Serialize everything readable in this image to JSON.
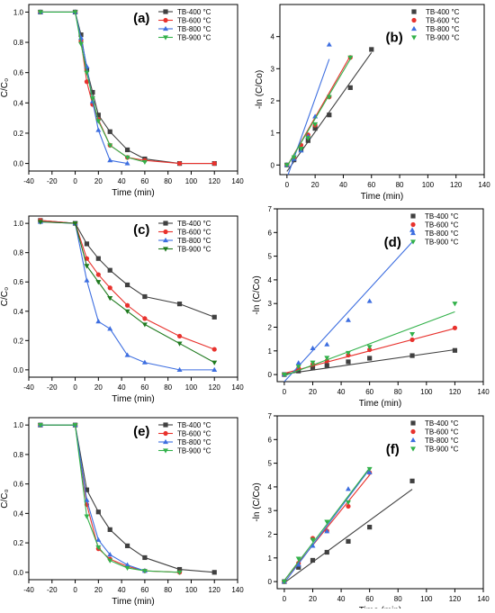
{
  "chart_data": [
    {
      "id": "a",
      "type": "line",
      "panel_label": "(a)",
      "xlabel": "Time (min)",
      "ylabel": "C/C₀",
      "xlim": [
        -40,
        140
      ],
      "ylim": [
        -0.05,
        1.05
      ],
      "xticks": [
        -40,
        -20,
        0,
        20,
        40,
        60,
        80,
        100,
        120,
        140
      ],
      "yticks": [
        0.0,
        0.2,
        0.4,
        0.6,
        0.8,
        1.0
      ],
      "legend": "top-right",
      "series": [
        {
          "name": "TB-400 °C",
          "color": "#404040",
          "marker": "square",
          "x": [
            -30,
            0,
            5,
            10,
            15,
            20,
            30,
            45,
            60,
            90,
            120
          ],
          "y": [
            1.0,
            1.0,
            0.85,
            0.62,
            0.47,
            0.32,
            0.21,
            0.09,
            0.03,
            0.0,
            0.0
          ]
        },
        {
          "name": "TB-600 °C",
          "color": "#e8322d",
          "marker": "circle",
          "x": [
            -30,
            0,
            5,
            10,
            15,
            20,
            30,
            45,
            60,
            90,
            120
          ],
          "y": [
            1.0,
            1.0,
            0.81,
            0.54,
            0.39,
            0.29,
            0.12,
            0.04,
            0.02,
            0.0,
            0.0
          ]
        },
        {
          "name": "TB-800 °C",
          "color": "#3d6ee0",
          "marker": "triangle-up",
          "x": [
            -30,
            0,
            5,
            10,
            15,
            20,
            30,
            45
          ],
          "y": [
            1.0,
            1.0,
            0.83,
            0.64,
            0.41,
            0.22,
            0.02,
            0.0
          ]
        },
        {
          "name": "TB-900 °C",
          "color": "#32b14a",
          "marker": "triangle-down",
          "x": [
            -30,
            0,
            5,
            10,
            15,
            20,
            30,
            45,
            60
          ],
          "y": [
            1.0,
            1.0,
            0.79,
            0.6,
            0.43,
            0.28,
            0.12,
            0.04,
            0.01
          ]
        }
      ]
    },
    {
      "id": "b",
      "type": "scatter",
      "panel_label": "(b)",
      "xlabel": "Time (min)",
      "ylabel": "-ln (C/Co)",
      "xlim": [
        -5,
        140
      ],
      "ylim": [
        -0.3,
        5
      ],
      "xticks": [
        0,
        20,
        40,
        60,
        80,
        100,
        120,
        140
      ],
      "yticks": [
        0,
        1,
        2,
        3,
        4
      ],
      "legend": "top-right",
      "series": [
        {
          "name": "TB-400 °C",
          "color": "#404040",
          "marker": "square",
          "x": [
            0,
            5,
            10,
            15,
            20,
            30,
            45,
            60
          ],
          "y": [
            0,
            0.16,
            0.48,
            0.76,
            1.14,
            1.56,
            2.41,
            3.6
          ],
          "fit": [
            [
              0,
              -0.2
            ],
            [
              60,
              3.5
            ]
          ]
        },
        {
          "name": "TB-600 °C",
          "color": "#e8322d",
          "marker": "circle",
          "x": [
            0,
            5,
            10,
            15,
            20,
            30,
            45
          ],
          "y": [
            0,
            0.21,
            0.62,
            0.94,
            1.24,
            2.12,
            3.35
          ],
          "fit": [
            [
              0,
              -0.05
            ],
            [
              45,
              3.4
            ]
          ]
        },
        {
          "name": "TB-800 °C",
          "color": "#3d6ee0",
          "marker": "triangle-up",
          "x": [
            0,
            5,
            10,
            15,
            20,
            30
          ],
          "y": [
            0,
            0.19,
            0.45,
            0.89,
            1.51,
            3.75
          ],
          "fit": [
            [
              0,
              -0.4
            ],
            [
              30,
              3.3
            ]
          ]
        },
        {
          "name": "TB-900 °C",
          "color": "#32b14a",
          "marker": "triangle-down",
          "x": [
            0,
            5,
            10,
            15,
            20,
            30,
            45
          ],
          "y": [
            0,
            0.24,
            0.51,
            0.84,
            1.27,
            2.12,
            3.35
          ],
          "fit": [
            [
              0,
              -0.05
            ],
            [
              45,
              3.3
            ]
          ]
        }
      ]
    },
    {
      "id": "c",
      "type": "line",
      "panel_label": "(c)",
      "xlabel": "Time (min)",
      "ylabel": "C/C₀",
      "xlim": [
        -40,
        140
      ],
      "ylim": [
        -0.05,
        1.05
      ],
      "xticks": [
        -40,
        -20,
        0,
        20,
        40,
        60,
        80,
        100,
        120,
        140
      ],
      "yticks": [
        0.0,
        0.2,
        0.4,
        0.6,
        0.8,
        1.0
      ],
      "legend": "top-right",
      "series": [
        {
          "name": "TB-400 °C",
          "color": "#404040",
          "marker": "square",
          "x": [
            -30,
            0,
            10,
            20,
            30,
            45,
            60,
            90,
            120
          ],
          "y": [
            1.02,
            1.0,
            0.86,
            0.76,
            0.68,
            0.58,
            0.5,
            0.45,
            0.36
          ]
        },
        {
          "name": "TB-600 °C",
          "color": "#e8322d",
          "marker": "circle",
          "x": [
            -30,
            0,
            10,
            20,
            30,
            45,
            60,
            90,
            120
          ],
          "y": [
            1.02,
            1.0,
            0.76,
            0.65,
            0.56,
            0.44,
            0.35,
            0.23,
            0.14
          ]
        },
        {
          "name": "TB-800 °C",
          "color": "#3d6ee0",
          "marker": "triangle-up",
          "x": [
            -30,
            0,
            10,
            20,
            30,
            45,
            60,
            90,
            120
          ],
          "y": [
            1.01,
            1.0,
            0.61,
            0.33,
            0.28,
            0.1,
            0.05,
            0.0,
            0.0
          ]
        },
        {
          "name": "TB-900 °C",
          "color": "#1f7a1f",
          "marker": "triangle-down",
          "x": [
            -30,
            0,
            10,
            20,
            30,
            45,
            60,
            90,
            120
          ],
          "y": [
            1.01,
            1.0,
            0.71,
            0.6,
            0.49,
            0.4,
            0.31,
            0.18,
            0.05
          ]
        }
      ]
    },
    {
      "id": "d",
      "type": "scatter",
      "panel_label": "(d)",
      "xlabel": "Time (min)",
      "ylabel": "-ln (C/Co)",
      "xlim": [
        -5,
        140
      ],
      "ylim": [
        -0.3,
        7
      ],
      "xticks": [
        0,
        20,
        40,
        60,
        80,
        100,
        120,
        140
      ],
      "yticks": [
        0,
        1,
        2,
        3,
        4,
        5,
        6,
        7
      ],
      "legend": "top-right",
      "series": [
        {
          "name": "TB-400 °C",
          "color": "#404040",
          "marker": "square",
          "x": [
            0,
            10,
            20,
            30,
            45,
            60,
            90,
            120
          ],
          "y": [
            0,
            0.15,
            0.28,
            0.39,
            0.54,
            0.69,
            0.8,
            1.02
          ],
          "fit": [
            [
              0,
              0.02
            ],
            [
              120,
              1.05
            ]
          ]
        },
        {
          "name": "TB-600 °C",
          "color": "#e8322d",
          "marker": "circle",
          "x": [
            0,
            10,
            20,
            30,
            45,
            60,
            90,
            120
          ],
          "y": [
            0,
            0.27,
            0.43,
            0.58,
            0.82,
            1.05,
            1.47,
            1.97
          ],
          "fit": [
            [
              0,
              0.05
            ],
            [
              120,
              1.95
            ]
          ]
        },
        {
          "name": "TB-800 °C",
          "color": "#3d6ee0",
          "marker": "triangle-up",
          "x": [
            0,
            10,
            20,
            30,
            45,
            60,
            90
          ],
          "y": [
            0,
            0.49,
            1.11,
            1.27,
            2.3,
            3.1,
            6.1
          ],
          "fit": [
            [
              0,
              -0.3
            ],
            [
              90,
              5.6
            ]
          ]
        },
        {
          "name": "TB-900 °C",
          "color": "#32b14a",
          "marker": "triangle-down",
          "x": [
            0,
            10,
            20,
            30,
            45,
            60,
            90,
            120
          ],
          "y": [
            0,
            0.34,
            0.51,
            0.71,
            0.92,
            1.17,
            1.71,
            3.0
          ],
          "fit": [
            [
              0,
              -0.05
            ],
            [
              120,
              2.65
            ]
          ]
        }
      ]
    },
    {
      "id": "e",
      "type": "line",
      "panel_label": "(e)",
      "xlabel": "Time (min)",
      "ylabel": "C/C₀",
      "xlim": [
        -40,
        140
      ],
      "ylim": [
        -0.05,
        1.05
      ],
      "xticks": [
        -40,
        -20,
        0,
        20,
        40,
        60,
        80,
        100,
        120,
        140
      ],
      "yticks": [
        0.0,
        0.2,
        0.4,
        0.6,
        0.8,
        1.0
      ],
      "legend": "top-right",
      "series": [
        {
          "name": "TB-400 °C",
          "color": "#404040",
          "marker": "square",
          "x": [
            -30,
            0,
            10,
            20,
            30,
            45,
            60,
            90,
            120
          ],
          "y": [
            1.0,
            1.0,
            0.56,
            0.41,
            0.29,
            0.18,
            0.1,
            0.02,
            0.0
          ]
        },
        {
          "name": "TB-600 °C",
          "color": "#e8322d",
          "marker": "circle",
          "x": [
            -30,
            0,
            10,
            20,
            30,
            45,
            60,
            90
          ],
          "y": [
            1.0,
            1.0,
            0.46,
            0.16,
            0.09,
            0.04,
            0.01,
            0.0
          ]
        },
        {
          "name": "TB-800 °C",
          "color": "#3d6ee0",
          "marker": "triangle-up",
          "x": [
            -30,
            0,
            10,
            20,
            30,
            45,
            60
          ],
          "y": [
            1.0,
            1.0,
            0.49,
            0.22,
            0.12,
            0.05,
            0.01
          ]
        },
        {
          "name": "TB-900 °C",
          "color": "#32b14a",
          "marker": "triangle-down",
          "x": [
            -30,
            0,
            10,
            20,
            30,
            45,
            60,
            90
          ],
          "y": [
            1.0,
            1.0,
            0.38,
            0.17,
            0.08,
            0.03,
            0.01,
            0.0
          ]
        }
      ]
    },
    {
      "id": "f",
      "type": "scatter",
      "panel_label": "(f)",
      "xlabel": "Time (min)",
      "ylabel": "-ln (C/Co)",
      "xlim": [
        -5,
        140
      ],
      "ylim": [
        -0.3,
        7
      ],
      "xticks": [
        0,
        20,
        40,
        60,
        80,
        100,
        120,
        140
      ],
      "yticks": [
        0,
        1,
        2,
        3,
        4,
        5,
        6,
        7
      ],
      "legend": "top-right",
      "series": [
        {
          "name": "TB-400 °C",
          "color": "#404040",
          "marker": "square",
          "x": [
            0,
            10,
            20,
            30,
            45,
            60,
            90
          ],
          "y": [
            0,
            0.6,
            0.9,
            1.24,
            1.7,
            2.3,
            4.25
          ],
          "fit": [
            [
              0,
              -0.05
            ],
            [
              90,
              3.9
            ]
          ]
        },
        {
          "name": "TB-600 °C",
          "color": "#e8322d",
          "marker": "circle",
          "x": [
            0,
            10,
            20,
            30,
            45,
            60
          ],
          "y": [
            0,
            0.78,
            1.83,
            2.14,
            3.18,
            4.6
          ],
          "fit": [
            [
              0,
              0.05
            ],
            [
              60,
              4.5
            ]
          ]
        },
        {
          "name": "TB-800 °C",
          "color": "#3d6ee0",
          "marker": "triangle-up",
          "x": [
            0,
            10,
            20,
            30,
            45,
            60
          ],
          "y": [
            0,
            0.71,
            1.51,
            2.12,
            3.91,
            4.61
          ],
          "fit": [
            [
              0,
              -0.05
            ],
            [
              60,
              4.75
            ]
          ]
        },
        {
          "name": "TB-900 °C",
          "color": "#32b14a",
          "marker": "triangle-down",
          "x": [
            0,
            10,
            20,
            30,
            45,
            60
          ],
          "y": [
            0,
            0.97,
            1.77,
            2.53,
            3.35,
            4.76
          ],
          "fit": [
            [
              0,
              0.05
            ],
            [
              60,
              4.8
            ]
          ]
        }
      ]
    }
  ]
}
